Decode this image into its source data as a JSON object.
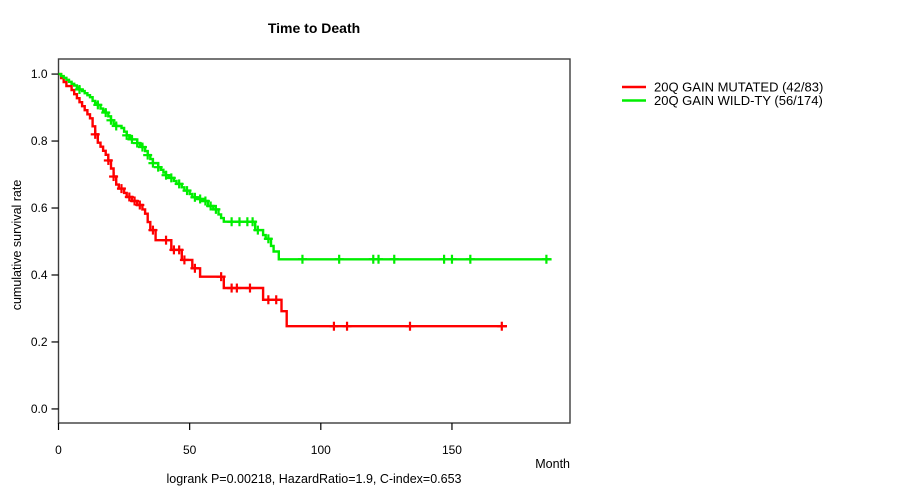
{
  "chart": {
    "title": "Time to Death",
    "footer": "logrank P=0.00218, HazardRatio=1.9, C-index=0.653",
    "x_axis_label": "Month",
    "y_axis_label": "cumulative survival rate"
  },
  "chart_data": {
    "type": "line",
    "subtype": "kaplan-meier-step",
    "title": "Time to Death",
    "xlabel": "Month",
    "ylabel": "cumulative survival rate",
    "annotation": "logrank P=0.00218, HazardRatio=1.9, C-index=0.653",
    "xlim": [
      0,
      195
    ],
    "ylim": [
      -0.042,
      1.045
    ],
    "x_ticks": [
      0,
      50,
      100,
      150
    ],
    "y_ticks": [
      1.0,
      0.8,
      0.6,
      0.4,
      0.2,
      0.0
    ],
    "grid": false,
    "legend_position": "right",
    "series": [
      {
        "name": "20Q GAIN MUTATED (42/83)",
        "color": "#FF0000",
        "events": 42,
        "n": 83,
        "end_month": 171,
        "steps": [
          [
            0,
            1.0
          ],
          [
            1,
            0.988
          ],
          [
            2,
            0.976
          ],
          [
            3,
            0.964
          ],
          [
            5,
            0.952
          ],
          [
            6,
            0.94
          ],
          [
            7,
            0.928
          ],
          [
            8,
            0.916
          ],
          [
            9,
            0.904
          ],
          [
            10,
            0.892
          ],
          [
            11,
            0.88
          ],
          [
            12,
            0.868
          ],
          [
            13,
            0.844
          ],
          [
            14,
            0.82
          ],
          [
            15,
            0.795
          ],
          [
            16,
            0.783
          ],
          [
            17,
            0.771
          ],
          [
            18,
            0.759
          ],
          [
            19,
            0.742
          ],
          [
            20,
            0.718
          ],
          [
            21,
            0.694
          ],
          [
            22,
            0.67
          ],
          [
            23,
            0.658
          ],
          [
            25,
            0.645
          ],
          [
            26,
            0.633
          ],
          [
            28,
            0.621
          ],
          [
            30,
            0.609
          ],
          [
            32,
            0.596
          ],
          [
            33,
            0.583
          ],
          [
            34,
            0.558
          ],
          [
            35,
            0.534
          ],
          [
            37,
            0.504
          ],
          [
            43,
            0.475
          ],
          [
            47,
            0.445
          ],
          [
            51,
            0.42
          ],
          [
            54,
            0.395
          ],
          [
            63,
            0.361
          ],
          [
            78,
            0.326
          ],
          [
            85,
            0.292
          ],
          [
            87,
            0.247
          ]
        ],
        "censor_months": [
          14,
          19,
          21,
          24,
          27,
          29,
          31,
          36,
          41,
          44,
          46,
          48,
          52,
          62,
          66,
          68,
          73,
          80,
          83,
          105,
          110,
          134,
          169
        ]
      },
      {
        "name": "20Q GAIN WILD-TY (56/174)",
        "color": "#00EE00",
        "events": 56,
        "n": 174,
        "end_month": 188,
        "steps": [
          [
            0,
            1.0
          ],
          [
            1,
            0.994
          ],
          [
            2,
            0.989
          ],
          [
            3,
            0.983
          ],
          [
            4,
            0.977
          ],
          [
            5,
            0.971
          ],
          [
            6,
            0.966
          ],
          [
            7,
            0.96
          ],
          [
            8,
            0.954
          ],
          [
            9,
            0.949
          ],
          [
            10,
            0.943
          ],
          [
            11,
            0.937
          ],
          [
            12,
            0.931
          ],
          [
            13,
            0.92
          ],
          [
            14,
            0.914
          ],
          [
            15,
            0.908
          ],
          [
            16,
            0.897
          ],
          [
            17,
            0.891
          ],
          [
            18,
            0.885
          ],
          [
            19,
            0.874
          ],
          [
            20,
            0.862
          ],
          [
            21,
            0.851
          ],
          [
            22,
            0.845
          ],
          [
            24,
            0.839
          ],
          [
            25,
            0.828
          ],
          [
            26,
            0.817
          ],
          [
            27,
            0.811
          ],
          [
            28,
            0.805
          ],
          [
            30,
            0.794
          ],
          [
            31,
            0.788
          ],
          [
            32,
            0.782
          ],
          [
            33,
            0.77
          ],
          [
            34,
            0.758
          ],
          [
            35,
            0.746
          ],
          [
            36,
            0.734
          ],
          [
            38,
            0.722
          ],
          [
            39,
            0.714
          ],
          [
            40,
            0.706
          ],
          [
            41,
            0.698
          ],
          [
            42,
            0.69
          ],
          [
            44,
            0.681
          ],
          [
            45,
            0.672
          ],
          [
            47,
            0.662
          ],
          [
            48,
            0.652
          ],
          [
            50,
            0.642
          ],
          [
            51,
            0.632
          ],
          [
            53,
            0.627
          ],
          [
            55,
            0.621
          ],
          [
            57,
            0.606
          ],
          [
            59,
            0.596
          ],
          [
            61,
            0.581
          ],
          [
            62,
            0.57
          ],
          [
            63,
            0.559
          ],
          [
            75,
            0.534
          ],
          [
            78,
            0.519
          ],
          [
            79,
            0.508
          ],
          [
            81,
            0.487
          ],
          [
            82,
            0.47
          ],
          [
            84,
            0.447
          ]
        ],
        "censor_months": [
          8,
          15,
          18,
          20,
          22,
          26,
          28,
          30,
          32,
          34,
          36,
          38,
          41,
          43,
          46,
          49,
          52,
          54,
          56,
          58,
          60,
          66,
          69,
          72,
          74,
          76,
          80,
          93,
          107,
          120,
          122,
          128,
          147,
          150,
          157,
          186
        ]
      }
    ]
  }
}
